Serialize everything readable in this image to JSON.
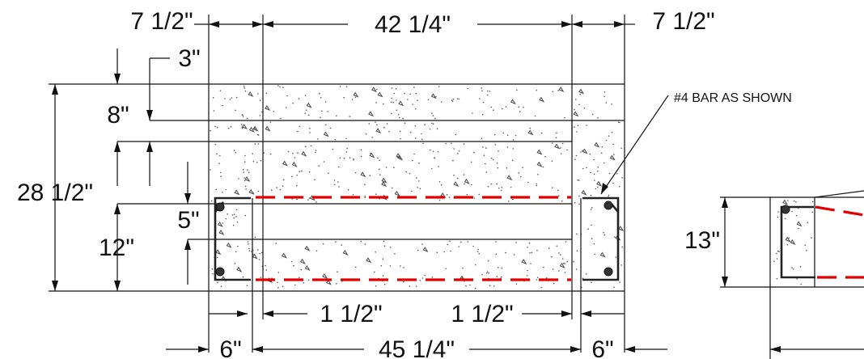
{
  "dimensions": {
    "top_left": "7 1/2\"",
    "top_mid": "42 1/4\"",
    "top_right": "7 1/2\"",
    "top_cover": "3\"",
    "upper_depth": "8\"",
    "total_height": "28 1/2\"",
    "inner_gap": "5\"",
    "lower_depth": "12\"",
    "clear_left": "1 1/2\"",
    "clear_right": "1 1/2\"",
    "bottom_left": "6\"",
    "bottom_mid": "45 1/4\"",
    "bottom_right": "6\"",
    "side_height": "13\""
  },
  "annotation": "#4 BAR AS SHOWN",
  "colors": {
    "lines": "#111111",
    "rebar_cut": "#e00000"
  }
}
